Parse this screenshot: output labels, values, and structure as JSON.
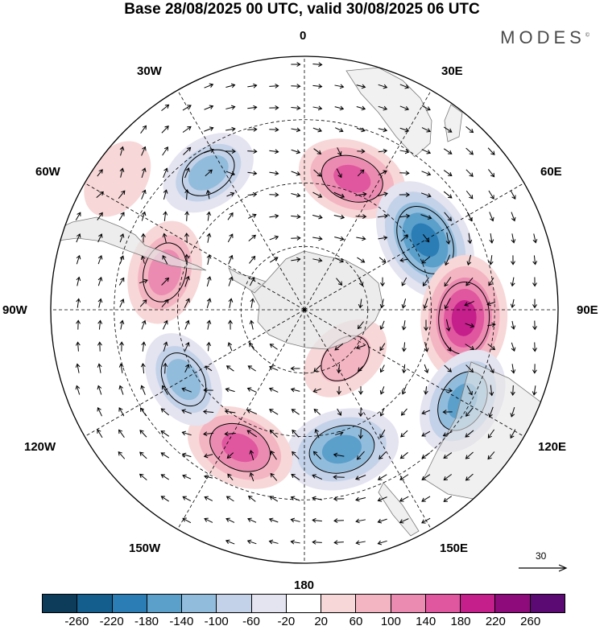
{
  "title": "Base 28/08/2025 00 UTC, valid 30/08/2025 06 UTC",
  "brand": "MODES",
  "brand_mark": "©",
  "longitude_labels": {
    "top": "0",
    "e30": "30E",
    "e60": "60E",
    "e90": "90E",
    "e120": "120E",
    "e150": "150E",
    "bottom": "180",
    "w150": "150W",
    "w120": "120W",
    "w90": "90W",
    "w60": "60W",
    "w30": "30W"
  },
  "reference_vector": {
    "label": "30"
  },
  "colorbar": {
    "colors": [
      "#0d3b5a",
      "#145e8e",
      "#2b7db5",
      "#5b9fcb",
      "#92bcdc",
      "#c3d2e8",
      "#e4e3f0",
      "#ffffff",
      "#f7d7d7",
      "#f3b5c2",
      "#ec8bb1",
      "#e0579f",
      "#c41f8a",
      "#8e0b7c",
      "#5b0a73"
    ],
    "ticks": [
      "-260",
      "-220",
      "-180",
      "-140",
      "-100",
      "-60",
      "-20",
      "20",
      "60",
      "100",
      "140",
      "180",
      "220",
      "260"
    ]
  },
  "anomaly_centers": [
    {
      "lon": 20,
      "colat": 0.55,
      "value": 170
    },
    {
      "lon": 60,
      "colat": 0.55,
      "value": -230
    },
    {
      "lon": 93,
      "colat": 0.63,
      "value": 230
    },
    {
      "lon": 120,
      "colat": 0.72,
      "value": -170
    },
    {
      "lon": 140,
      "colat": 0.25,
      "value": 110
    },
    {
      "lon": 165,
      "colat": 0.57,
      "value": -190
    },
    {
      "lon": -155,
      "colat": 0.6,
      "value": 170
    },
    {
      "lon": -120,
      "colat": 0.55,
      "value": -130
    },
    {
      "lon": -75,
      "colat": 0.57,
      "value": 150
    },
    {
      "lon": -35,
      "colat": 0.66,
      "value": -130
    },
    {
      "lon": -55,
      "colat": 0.9,
      "value": 70
    }
  ]
}
